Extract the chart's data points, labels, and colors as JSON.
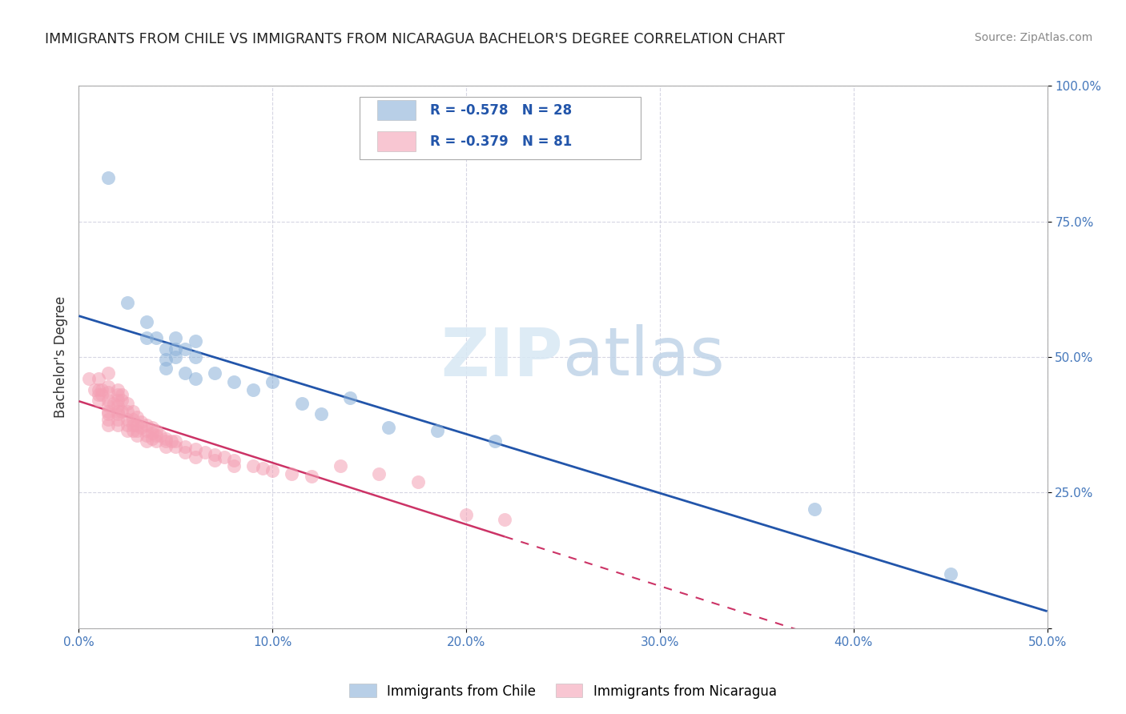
{
  "title": "IMMIGRANTS FROM CHILE VS IMMIGRANTS FROM NICARAGUA BACHELOR'S DEGREE CORRELATION CHART",
  "source": "Source: ZipAtlas.com",
  "ylabel": "Bachelor's Degree",
  "chile_label": "Immigrants from Chile",
  "nicaragua_label": "Immigrants from Nicaragua",
  "chile_R": -0.578,
  "chile_N": 28,
  "nicaragua_R": -0.379,
  "nicaragua_N": 81,
  "chile_color": "#8ab0d8",
  "nicaragua_color": "#f4a0b4",
  "chile_line_color": "#2255AA",
  "nicaragua_line_color": "#CC3366",
  "xlim": [
    0.0,
    0.5
  ],
  "ylim": [
    0.0,
    1.0
  ],
  "chile_points": [
    [
      0.015,
      0.83
    ],
    [
      0.025,
      0.6
    ],
    [
      0.035,
      0.565
    ],
    [
      0.035,
      0.535
    ],
    [
      0.04,
      0.535
    ],
    [
      0.045,
      0.515
    ],
    [
      0.045,
      0.495
    ],
    [
      0.045,
      0.48
    ],
    [
      0.05,
      0.535
    ],
    [
      0.05,
      0.515
    ],
    [
      0.05,
      0.5
    ],
    [
      0.055,
      0.515
    ],
    [
      0.055,
      0.47
    ],
    [
      0.06,
      0.53
    ],
    [
      0.06,
      0.5
    ],
    [
      0.06,
      0.46
    ],
    [
      0.07,
      0.47
    ],
    [
      0.08,
      0.455
    ],
    [
      0.09,
      0.44
    ],
    [
      0.1,
      0.455
    ],
    [
      0.115,
      0.415
    ],
    [
      0.125,
      0.395
    ],
    [
      0.14,
      0.425
    ],
    [
      0.16,
      0.37
    ],
    [
      0.185,
      0.365
    ],
    [
      0.215,
      0.345
    ],
    [
      0.38,
      0.22
    ],
    [
      0.45,
      0.1
    ]
  ],
  "nicaragua_points": [
    [
      0.005,
      0.46
    ],
    [
      0.008,
      0.44
    ],
    [
      0.01,
      0.46
    ],
    [
      0.01,
      0.44
    ],
    [
      0.01,
      0.43
    ],
    [
      0.01,
      0.42
    ],
    [
      0.012,
      0.44
    ],
    [
      0.012,
      0.43
    ],
    [
      0.015,
      0.47
    ],
    [
      0.015,
      0.445
    ],
    [
      0.015,
      0.435
    ],
    [
      0.015,
      0.42
    ],
    [
      0.015,
      0.41
    ],
    [
      0.015,
      0.4
    ],
    [
      0.015,
      0.395
    ],
    [
      0.015,
      0.385
    ],
    [
      0.015,
      0.375
    ],
    [
      0.018,
      0.415
    ],
    [
      0.02,
      0.44
    ],
    [
      0.02,
      0.43
    ],
    [
      0.02,
      0.42
    ],
    [
      0.02,
      0.41
    ],
    [
      0.02,
      0.4
    ],
    [
      0.02,
      0.395
    ],
    [
      0.02,
      0.385
    ],
    [
      0.02,
      0.375
    ],
    [
      0.022,
      0.43
    ],
    [
      0.022,
      0.42
    ],
    [
      0.022,
      0.4
    ],
    [
      0.025,
      0.415
    ],
    [
      0.025,
      0.4
    ],
    [
      0.025,
      0.385
    ],
    [
      0.025,
      0.375
    ],
    [
      0.025,
      0.365
    ],
    [
      0.028,
      0.4
    ],
    [
      0.028,
      0.385
    ],
    [
      0.028,
      0.375
    ],
    [
      0.028,
      0.365
    ],
    [
      0.03,
      0.39
    ],
    [
      0.03,
      0.375
    ],
    [
      0.03,
      0.365
    ],
    [
      0.03,
      0.355
    ],
    [
      0.032,
      0.38
    ],
    [
      0.032,
      0.37
    ],
    [
      0.035,
      0.375
    ],
    [
      0.035,
      0.365
    ],
    [
      0.035,
      0.355
    ],
    [
      0.035,
      0.345
    ],
    [
      0.038,
      0.37
    ],
    [
      0.038,
      0.36
    ],
    [
      0.038,
      0.35
    ],
    [
      0.04,
      0.365
    ],
    [
      0.04,
      0.355
    ],
    [
      0.04,
      0.345
    ],
    [
      0.042,
      0.355
    ],
    [
      0.045,
      0.35
    ],
    [
      0.045,
      0.345
    ],
    [
      0.045,
      0.335
    ],
    [
      0.048,
      0.345
    ],
    [
      0.05,
      0.345
    ],
    [
      0.05,
      0.335
    ],
    [
      0.055,
      0.335
    ],
    [
      0.055,
      0.325
    ],
    [
      0.06,
      0.33
    ],
    [
      0.06,
      0.315
    ],
    [
      0.065,
      0.325
    ],
    [
      0.07,
      0.32
    ],
    [
      0.07,
      0.31
    ],
    [
      0.075,
      0.315
    ],
    [
      0.08,
      0.31
    ],
    [
      0.08,
      0.3
    ],
    [
      0.09,
      0.3
    ],
    [
      0.095,
      0.295
    ],
    [
      0.1,
      0.29
    ],
    [
      0.11,
      0.285
    ],
    [
      0.12,
      0.28
    ],
    [
      0.135,
      0.3
    ],
    [
      0.155,
      0.285
    ],
    [
      0.175,
      0.27
    ],
    [
      0.2,
      0.21
    ],
    [
      0.22,
      0.2
    ]
  ]
}
